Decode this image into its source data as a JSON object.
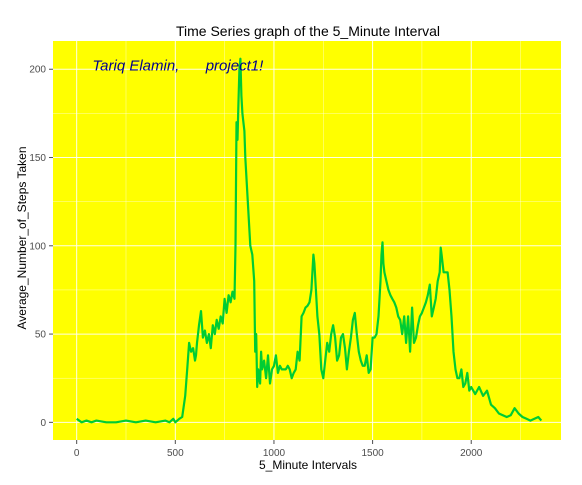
{
  "chart_data": {
    "type": "line",
    "title": "Time Series graph of the 5_Minute Interval",
    "xlabel": "5_Minute Intervals",
    "ylabel": "Average_Number_of_Steps Taken",
    "xlim": [
      -120,
      2455
    ],
    "ylim": [
      -10,
      216
    ],
    "x_ticks": [
      0,
      500,
      1000,
      1500,
      2000
    ],
    "y_ticks": [
      0,
      50,
      100,
      150,
      200
    ],
    "x_tick_labels": [
      "0",
      "500",
      "1000",
      "1500",
      "2000"
    ],
    "y_tick_labels": [
      "0",
      "50",
      "100",
      "150",
      "200"
    ],
    "annotations": [
      {
        "text": "Tariq Elamin,",
        "x": 300,
        "y": 202
      },
      {
        "text": "project1!",
        "x": 800,
        "y": 202
      }
    ],
    "grid": true,
    "colors": {
      "panel": "#ffff00",
      "line": "#00cc33",
      "grid": "#ffffff",
      "annotation": "#00008b"
    },
    "series": [
      {
        "x": [
          0,
          25,
          50,
          75,
          100,
          150,
          200,
          250,
          300,
          350,
          400,
          450,
          470,
          490,
          500,
          520,
          535,
          550,
          560,
          570,
          580,
          590,
          600,
          605,
          610,
          615,
          620,
          630,
          640,
          650,
          660,
          670,
          680,
          690,
          700,
          710,
          720,
          730,
          740,
          750,
          760,
          770,
          780,
          790,
          800,
          805,
          810,
          815,
          820,
          825,
          830,
          835,
          840,
          845,
          850,
          855,
          860,
          870,
          880,
          890,
          900,
          905,
          910,
          915,
          920,
          925,
          930,
          935,
          940,
          950,
          960,
          970,
          980,
          990,
          1000,
          1010,
          1020,
          1030,
          1040,
          1050,
          1060,
          1070,
          1080,
          1090,
          1100,
          1110,
          1120,
          1130,
          1140,
          1150,
          1160,
          1170,
          1180,
          1190,
          1200,
          1205,
          1210,
          1215,
          1220,
          1230,
          1240,
          1250,
          1260,
          1270,
          1280,
          1290,
          1300,
          1310,
          1320,
          1330,
          1340,
          1350,
          1360,
          1370,
          1380,
          1390,
          1400,
          1410,
          1420,
          1430,
          1440,
          1450,
          1460,
          1470,
          1480,
          1490,
          1500,
          1510,
          1520,
          1530,
          1540,
          1545,
          1550,
          1555,
          1560,
          1570,
          1580,
          1590,
          1600,
          1610,
          1620,
          1630,
          1640,
          1650,
          1660,
          1670,
          1680,
          1690,
          1700,
          1710,
          1720,
          1730,
          1740,
          1750,
          1760,
          1770,
          1780,
          1790,
          1800,
          1810,
          1820,
          1830,
          1840,
          1845,
          1850,
          1855,
          1860,
          1870,
          1880,
          1890,
          1900,
          1910,
          1920,
          1930,
          1940,
          1950,
          1960,
          1970,
          1980,
          1990,
          2000,
          2020,
          2040,
          2060,
          2080,
          2100,
          2120,
          2140,
          2160,
          2180,
          2200,
          2220,
          2240,
          2260,
          2280,
          2300,
          2320,
          2340,
          2355
        ],
        "y": [
          2,
          0,
          1,
          0,
          1,
          0,
          0,
          1,
          0,
          1,
          0,
          1,
          0,
          2,
          0,
          2,
          3,
          15,
          30,
          45,
          40,
          42,
          35,
          38,
          45,
          50,
          55,
          63,
          48,
          52,
          45,
          50,
          42,
          55,
          50,
          58,
          53,
          60,
          56,
          70,
          62,
          72,
          68,
          74,
          70,
          100,
          170,
          160,
          180,
          200,
          206,
          185,
          175,
          170,
          165,
          150,
          140,
          120,
          100,
          95,
          80,
          40,
          50,
          20,
          30,
          25,
          22,
          40,
          30,
          35,
          25,
          38,
          22,
          30,
          32,
          38,
          28,
          32,
          30,
          30,
          30,
          32,
          30,
          25,
          28,
          30,
          40,
          35,
          60,
          62,
          65,
          66,
          68,
          75,
          95,
          90,
          80,
          70,
          60,
          50,
          30,
          25,
          35,
          45,
          40,
          50,
          55,
          48,
          35,
          38,
          48,
          50,
          42,
          30,
          40,
          48,
          58,
          62,
          50,
          40,
          35,
          32,
          32,
          38,
          28,
          30,
          48,
          48,
          50,
          60,
          80,
          95,
          102,
          90,
          85,
          80,
          75,
          72,
          70,
          68,
          65,
          60,
          58,
          50,
          60,
          45,
          60,
          40,
          65,
          45,
          48,
          55,
          60,
          62,
          65,
          68,
          72,
          78,
          60,
          65,
          70,
          80,
          85,
          99,
          95,
          90,
          85,
          85,
          85,
          75,
          60,
          40,
          30,
          25,
          25,
          30,
          20,
          22,
          28,
          18,
          20,
          16,
          20,
          15,
          18,
          10,
          8,
          5,
          4,
          3,
          4,
          8,
          5,
          3,
          2,
          1,
          2,
          3,
          1
        ]
      }
    ]
  }
}
